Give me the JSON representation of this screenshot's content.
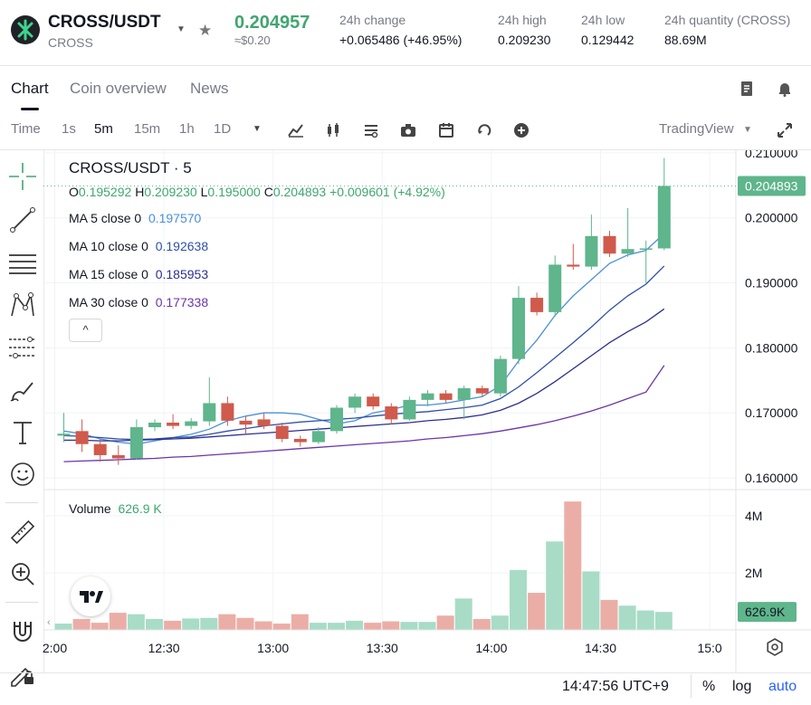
{
  "header": {
    "symbol": "CROSS/USDT",
    "base": "CROSS",
    "last_price": "0.204957",
    "last_usd": "≈$0.20",
    "stats": [
      {
        "label": "24h change",
        "value": "+0.065486 (+46.95%)",
        "green": true
      },
      {
        "label": "24h high",
        "value": "0.209230"
      },
      {
        "label": "24h low",
        "value": "0.129442"
      },
      {
        "label": "24h quantity (CROSS)",
        "value": "88.69M"
      }
    ]
  },
  "tabs": [
    "Chart",
    "Coin overview",
    "News"
  ],
  "toolbar": {
    "time_label": "Time",
    "intervals": [
      "1s",
      "5m",
      "15m",
      "1h",
      "1D"
    ],
    "active_interval": "5m",
    "tradingview_label": "TradingView"
  },
  "legend": {
    "title": "CROSS/USDT · 5",
    "o_label": "O",
    "o": "0.195292",
    "h_label": "H",
    "h": "0.209230",
    "l_label": "L",
    "l": "0.195000",
    "c_label": "C",
    "c": "0.204893",
    "change": "+0.009601 (+4.92%)",
    "ma": [
      {
        "label": "MA 5 close 0",
        "value": "0.197570",
        "color": "#4a90d9"
      },
      {
        "label": "MA 10 close 0",
        "value": "0.192638",
        "color": "#2f4fa8"
      },
      {
        "label": "MA 15 close 0",
        "value": "0.185953",
        "color": "#2c2f8f"
      },
      {
        "label": "MA 30 close 0",
        "value": "0.177338",
        "color": "#6a35a8"
      }
    ],
    "collapse_glyph": "^"
  },
  "volume_legend": {
    "label": "Volume",
    "value": "626.9 K"
  },
  "footer": {
    "clock": "14:47:56 UTC+9",
    "percent": "%",
    "log": "log",
    "auto": "auto"
  },
  "chart_data": {
    "type": "candlestick",
    "price_axis": {
      "ticks": [
        "0.210000",
        "0.200000",
        "0.190000",
        "0.180000",
        "0.170000",
        "0.160000"
      ],
      "current_label": "0.204893",
      "ylim": [
        0.1582,
        0.2104
      ]
    },
    "volume_axis": {
      "ticks": [
        "4M",
        "2M"
      ],
      "current_label": "626.9K",
      "ylim": [
        0,
        4.6
      ]
    },
    "time_ticks": [
      {
        "label": "2:00",
        "i": 0
      },
      {
        "label": "12:30",
        "i": 6
      },
      {
        "label": "13:00",
        "i": 12
      },
      {
        "label": "13:30",
        "i": 18
      },
      {
        "label": "14:00",
        "i": 24
      },
      {
        "label": "14:30",
        "i": 30
      },
      {
        "label": "15:0",
        "i": 36
      }
    ],
    "candles": [
      {
        "o": 0.1665,
        "h": 0.17,
        "l": 0.1655,
        "c": 0.1668,
        "v": 0.22
      },
      {
        "o": 0.1672,
        "h": 0.169,
        "l": 0.164,
        "c": 0.1652,
        "v": 0.38
      },
      {
        "o": 0.1652,
        "h": 0.166,
        "l": 0.1625,
        "c": 0.1635,
        "v": 0.25
      },
      {
        "o": 0.1635,
        "h": 0.165,
        "l": 0.162,
        "c": 0.163,
        "v": 0.6
      },
      {
        "o": 0.163,
        "h": 0.169,
        "l": 0.1628,
        "c": 0.1678,
        "v": 0.55
      },
      {
        "o": 0.1678,
        "h": 0.169,
        "l": 0.1672,
        "c": 0.1685,
        "v": 0.38
      },
      {
        "o": 0.1685,
        "h": 0.1698,
        "l": 0.1675,
        "c": 0.168,
        "v": 0.32
      },
      {
        "o": 0.168,
        "h": 0.1692,
        "l": 0.1675,
        "c": 0.1687,
        "v": 0.4
      },
      {
        "o": 0.1687,
        "h": 0.1755,
        "l": 0.168,
        "c": 0.1715,
        "v": 0.42
      },
      {
        "o": 0.1715,
        "h": 0.1725,
        "l": 0.168,
        "c": 0.1688,
        "v": 0.55
      },
      {
        "o": 0.1688,
        "h": 0.1695,
        "l": 0.1668,
        "c": 0.1682,
        "v": 0.42
      },
      {
        "o": 0.169,
        "h": 0.17,
        "l": 0.1675,
        "c": 0.168,
        "v": 0.3
      },
      {
        "o": 0.168,
        "h": 0.1685,
        "l": 0.1655,
        "c": 0.166,
        "v": 0.22
      },
      {
        "o": 0.166,
        "h": 0.1665,
        "l": 0.1648,
        "c": 0.1655,
        "v": 0.55
      },
      {
        "o": 0.1655,
        "h": 0.1678,
        "l": 0.1652,
        "c": 0.1672,
        "v": 0.25
      },
      {
        "o": 0.1672,
        "h": 0.1712,
        "l": 0.1668,
        "c": 0.1708,
        "v": 0.25
      },
      {
        "o": 0.1708,
        "h": 0.173,
        "l": 0.17,
        "c": 0.1725,
        "v": 0.32
      },
      {
        "o": 0.1725,
        "h": 0.173,
        "l": 0.1705,
        "c": 0.171,
        "v": 0.25
      },
      {
        "o": 0.171,
        "h": 0.1715,
        "l": 0.1682,
        "c": 0.169,
        "v": 0.3
      },
      {
        "o": 0.169,
        "h": 0.1725,
        "l": 0.1688,
        "c": 0.172,
        "v": 0.28
      },
      {
        "o": 0.172,
        "h": 0.1735,
        "l": 0.171,
        "c": 0.173,
        "v": 0.28
      },
      {
        "o": 0.173,
        "h": 0.1735,
        "l": 0.1715,
        "c": 0.172,
        "v": 0.5
      },
      {
        "o": 0.172,
        "h": 0.1742,
        "l": 0.169,
        "c": 0.1738,
        "v": 1.1
      },
      {
        "o": 0.1738,
        "h": 0.1742,
        "l": 0.1725,
        "c": 0.173,
        "v": 0.38
      },
      {
        "o": 0.173,
        "h": 0.1788,
        "l": 0.1725,
        "c": 0.1783,
        "v": 0.5
      },
      {
        "o": 0.1783,
        "h": 0.1895,
        "l": 0.1775,
        "c": 0.1877,
        "v": 2.1
      },
      {
        "o": 0.1877,
        "h": 0.1885,
        "l": 0.185,
        "c": 0.1855,
        "v": 1.3
      },
      {
        "o": 0.1855,
        "h": 0.1942,
        "l": 0.1848,
        "c": 0.1928,
        "v": 3.1
      },
      {
        "o": 0.1928,
        "h": 0.196,
        "l": 0.192,
        "c": 0.1925,
        "v": 4.5
      },
      {
        "o": 0.1925,
        "h": 0.2005,
        "l": 0.192,
        "c": 0.1972,
        "v": 2.05
      },
      {
        "o": 0.1972,
        "h": 0.198,
        "l": 0.194,
        "c": 0.1945,
        "v": 1.05
      },
      {
        "o": 0.1945,
        "h": 0.2015,
        "l": 0.194,
        "c": 0.1952,
        "v": 0.85
      },
      {
        "o": 0.1952,
        "h": 0.1965,
        "l": 0.19,
        "c": 0.1953,
        "v": 0.68
      },
      {
        "o": 0.1953,
        "h": 0.2092,
        "l": 0.195,
        "c": 0.2049,
        "v": 0.63
      }
    ],
    "ma": [
      {
        "name": "MA 5 close 0",
        "color": "#4a90d9",
        "values": [
          0.1672,
          0.1668,
          0.166,
          0.1655,
          0.1652,
          0.1657,
          0.1662,
          0.1667,
          0.1675,
          0.1688,
          0.1695,
          0.17,
          0.17,
          0.1698,
          0.169,
          0.1683,
          0.1688,
          0.17,
          0.1705,
          0.1712,
          0.1712,
          0.1715,
          0.172,
          0.1725,
          0.1742,
          0.178,
          0.1812,
          0.185,
          0.188,
          0.1905,
          0.193,
          0.1943,
          0.195,
          0.1976
        ]
      },
      {
        "name": "MA 10 close 0",
        "color": "#2f4fa8",
        "values": [
          0.1665,
          0.1664,
          0.1662,
          0.166,
          0.1659,
          0.166,
          0.1662,
          0.1663,
          0.1667,
          0.1672,
          0.1676,
          0.168,
          0.1683,
          0.1686,
          0.1688,
          0.169,
          0.1692,
          0.1695,
          0.1698,
          0.17,
          0.1702,
          0.1705,
          0.1708,
          0.1712,
          0.1722,
          0.174,
          0.1762,
          0.1785,
          0.1808,
          0.1832,
          0.1858,
          0.188,
          0.1898,
          0.1926
        ]
      },
      {
        "name": "MA 15 close 0",
        "color": "#2c2f8f",
        "values": [
          0.1658,
          0.1658,
          0.1657,
          0.1657,
          0.1658,
          0.1659,
          0.166,
          0.1661,
          0.1663,
          0.1665,
          0.1667,
          0.1669,
          0.1671,
          0.1673,
          0.1675,
          0.1677,
          0.1679,
          0.1681,
          0.1683,
          0.1685,
          0.1688,
          0.169,
          0.1693,
          0.1697,
          0.1704,
          0.1715,
          0.173,
          0.1748,
          0.1768,
          0.1788,
          0.1808,
          0.1825,
          0.184,
          0.186
        ]
      },
      {
        "name": "MA 30 close 0",
        "color": "#6a35a8",
        "values": [
          0.1625,
          0.1626,
          0.1627,
          0.1628,
          0.1629,
          0.163,
          0.1632,
          0.1633,
          0.1635,
          0.1637,
          0.1639,
          0.1641,
          0.1643,
          0.1645,
          0.1647,
          0.1649,
          0.1651,
          0.1653,
          0.1655,
          0.1657,
          0.166,
          0.1662,
          0.1665,
          0.1668,
          0.1672,
          0.1677,
          0.1682,
          0.1688,
          0.1695,
          0.1703,
          0.1712,
          0.1722,
          0.1732,
          0.1773
        ]
      }
    ],
    "colors": {
      "up": "#5fb58c",
      "down": "#d05a4b",
      "vol_up": "#a8dcc6",
      "vol_down": "#ebaea6",
      "current": "#5fb58c"
    }
  }
}
